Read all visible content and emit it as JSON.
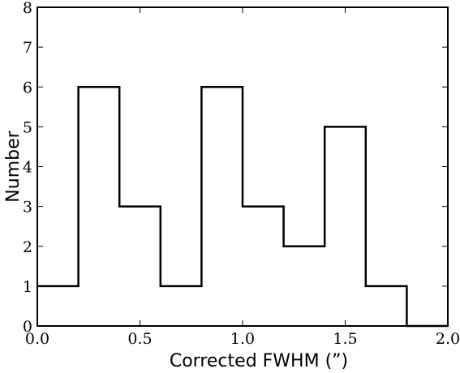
{
  "chart_data": {
    "type": "histogram",
    "title": "",
    "xlabel": "Corrected FWHM (”)",
    "ylabel": "Number",
    "xlim": [
      0.0,
      2.0
    ],
    "ylim": [
      0,
      8
    ],
    "xticks": [
      0.0,
      0.5,
      1.0,
      1.5,
      2.0
    ],
    "xtick_labels": [
      "0.0",
      "0.5",
      "1.0",
      "1.5",
      "2.0"
    ],
    "yticks": [
      0,
      1,
      2,
      3,
      4,
      5,
      6,
      7,
      8
    ],
    "ytick_labels": [
      "0",
      "1",
      "2",
      "3",
      "4",
      "5",
      "6",
      "7",
      "8"
    ],
    "bin_edges": [
      0.0,
      0.2,
      0.4,
      0.6,
      0.8,
      1.0,
      1.2,
      1.4,
      1.6,
      1.8,
      2.0
    ],
    "counts": [
      1,
      6,
      3,
      1,
      6,
      3,
      2,
      5,
      1,
      0
    ],
    "grid": false,
    "style": "step-outline",
    "line_color": "#000000"
  }
}
